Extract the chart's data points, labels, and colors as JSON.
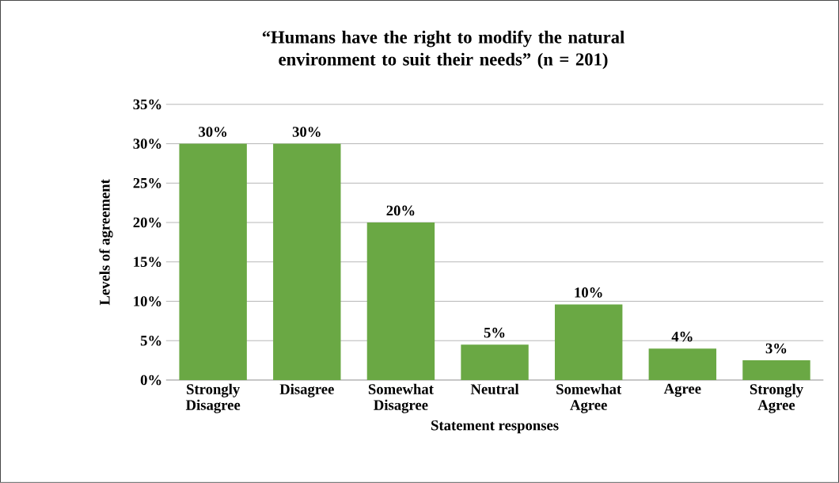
{
  "chart_data": {
    "type": "bar",
    "title": "“Humans have the right to modify the natural environment to suit their needs” (n = 201)",
    "xlabel": "Statement responses",
    "ylabel": "Levels of agreement",
    "categories": [
      "Strongly Disagree",
      "Disagree",
      "Somewhat Disagree",
      "Neutral",
      "Somewhat Agree",
      "Agree",
      "Strongly Agree"
    ],
    "values": [
      30,
      30,
      20,
      4.5,
      9.6,
      4,
      2.5
    ],
    "value_labels": [
      "30%",
      "30%",
      "20%",
      "5%",
      "10%",
      "4%",
      "3%"
    ],
    "color": "#6aa844",
    "ylim": [
      0,
      35
    ],
    "yticks": [
      {
        "value": 0,
        "label": "0%"
      },
      {
        "value": 5,
        "label": "5%"
      },
      {
        "value": 10,
        "label": "10%"
      },
      {
        "value": 15,
        "label": "15%"
      },
      {
        "value": 20,
        "label": "20%"
      },
      {
        "value": 25,
        "label": "25%"
      },
      {
        "value": 30,
        "label": "30%"
      },
      {
        "value": 35,
        "label": "35%"
      }
    ],
    "grid": "y"
  }
}
